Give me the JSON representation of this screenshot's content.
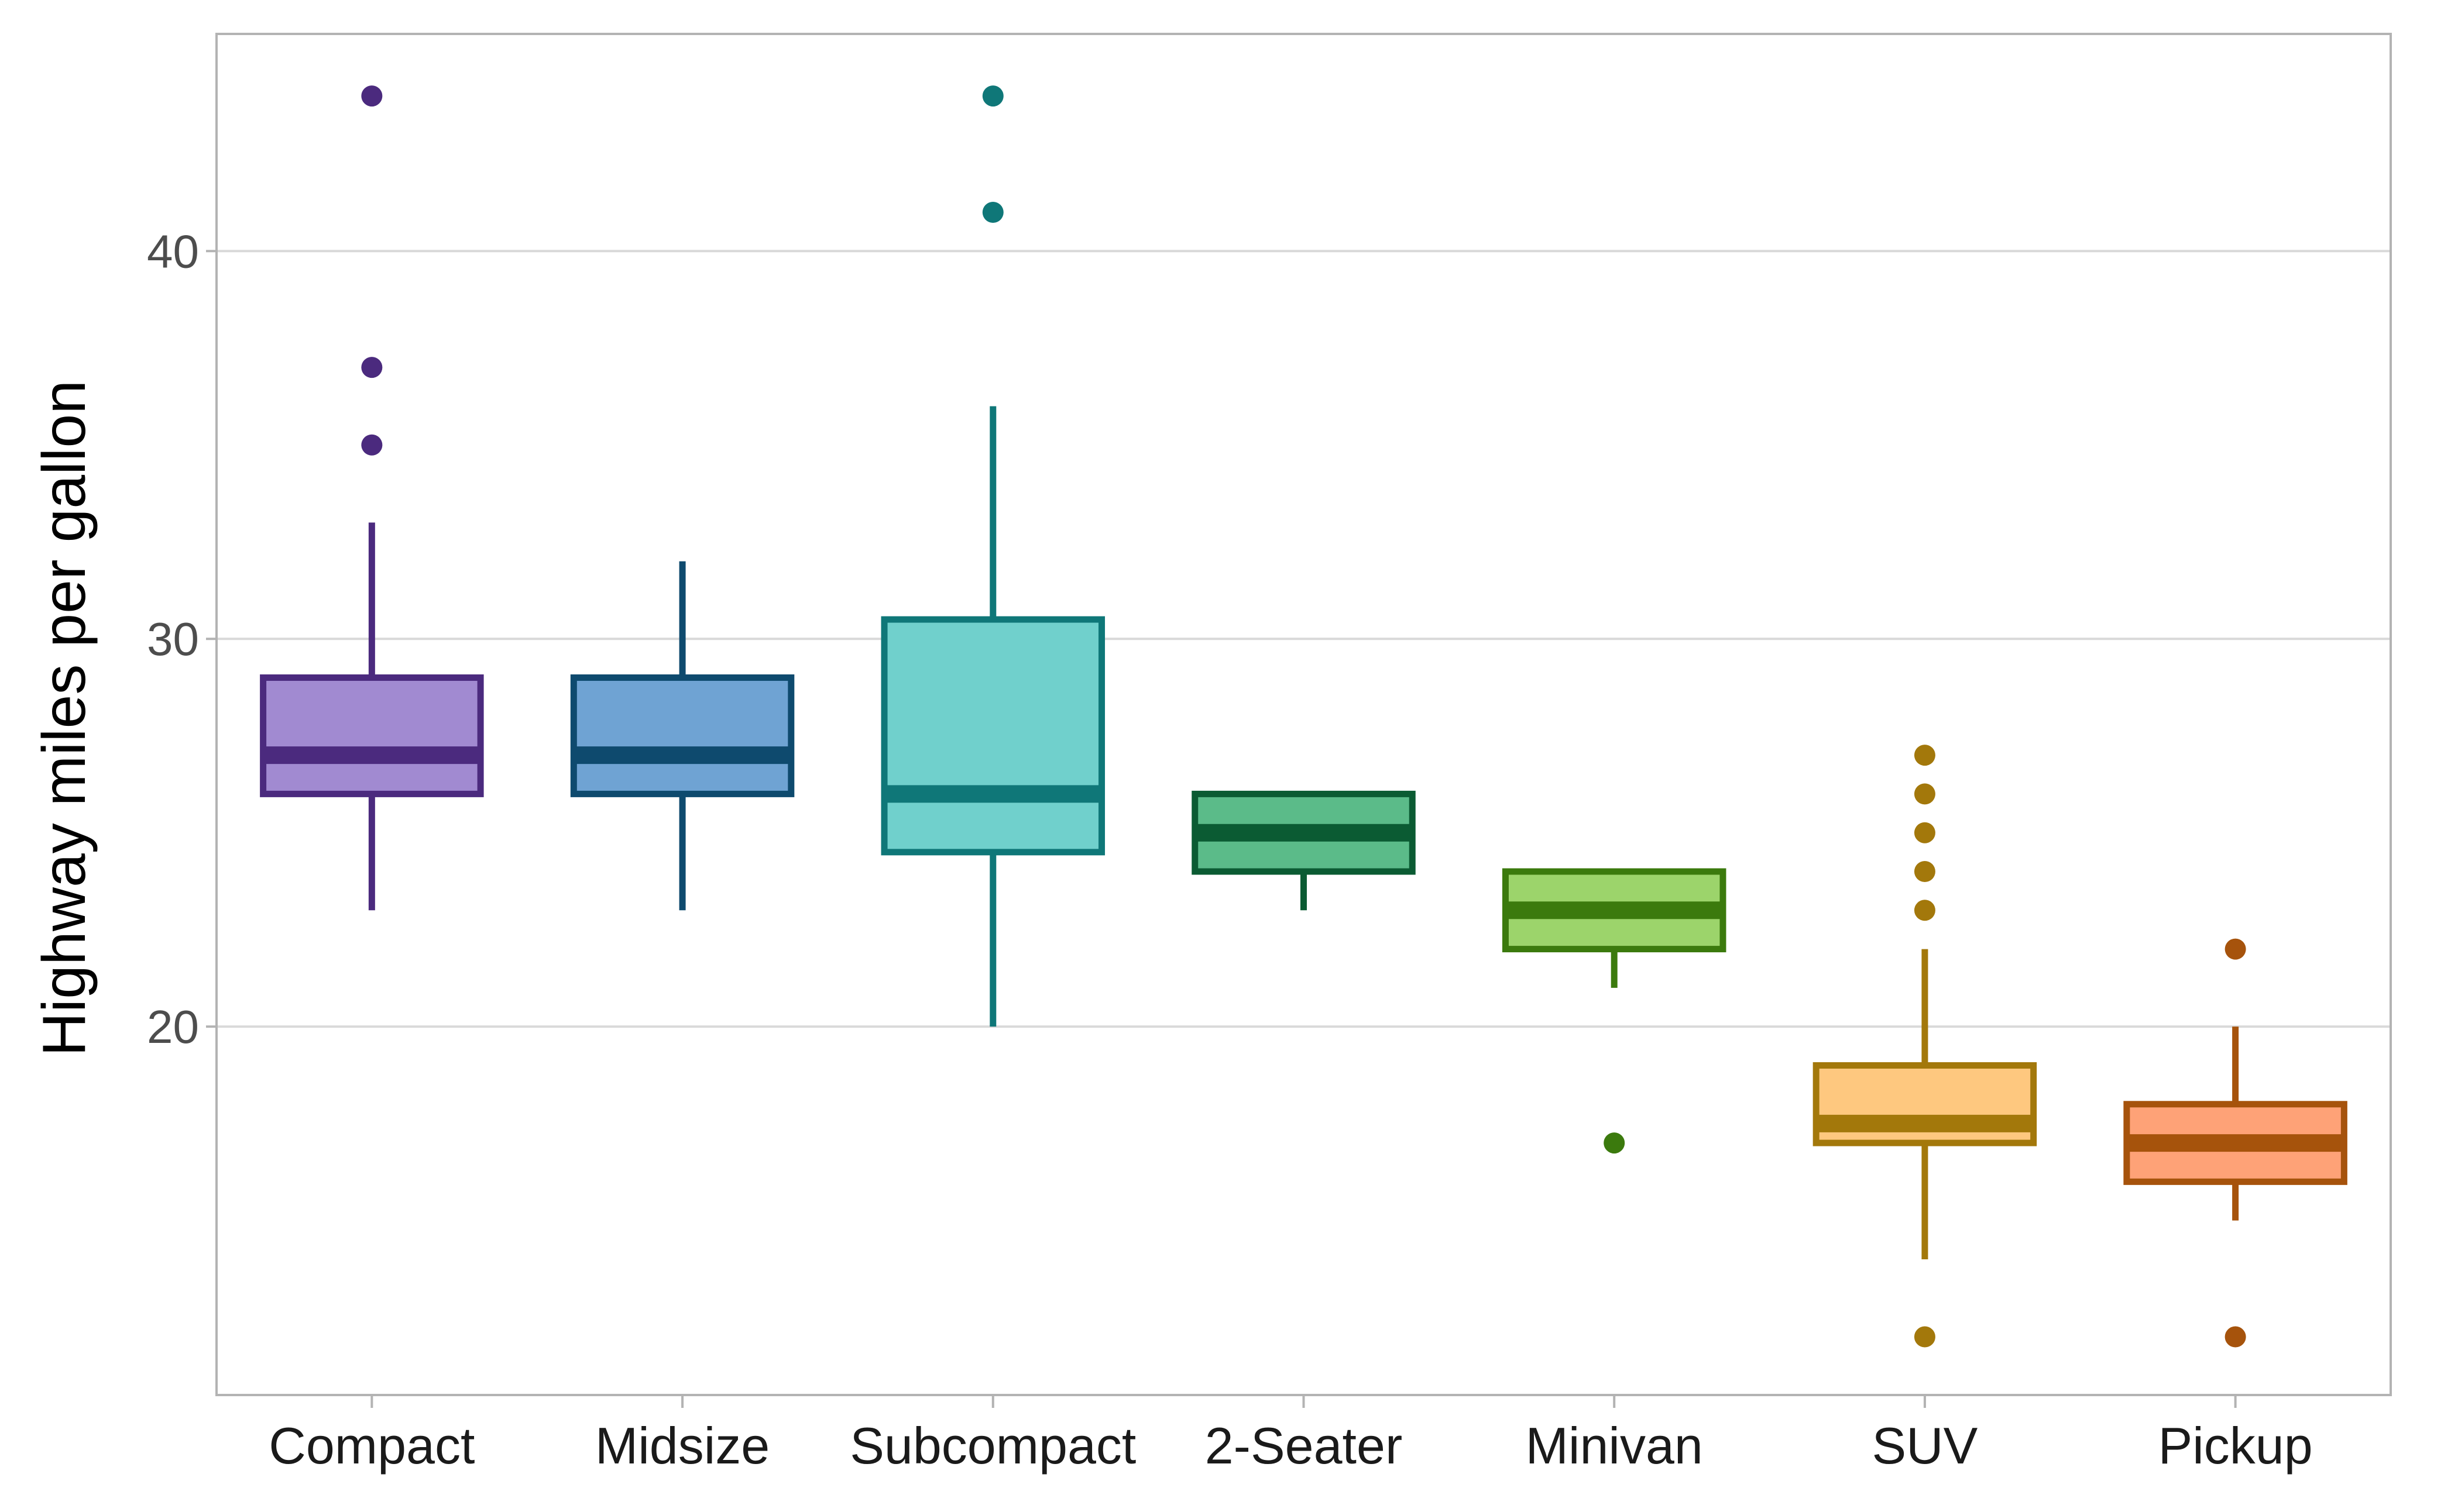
{
  "chart_data": {
    "type": "boxplot",
    "title": "",
    "xlabel": "",
    "ylabel": "Highway miles per gallon",
    "ylim": [
      10.5,
      45.6
    ],
    "yticks": [
      20,
      30,
      40
    ],
    "grid": "horizontal",
    "legend": "none",
    "categories": [
      "Compact",
      "Midsize",
      "Subcompact",
      "2-Seater",
      "Minivan",
      "SUV",
      "Pickup"
    ],
    "series": [
      {
        "category": "Compact",
        "whisker_low": 23,
        "q1": 26,
        "median": 27,
        "q3": 29,
        "whisker_high": 33,
        "outliers": [
          35,
          37,
          44
        ],
        "fill": "#a18ad1",
        "stroke": "#4b2a7e"
      },
      {
        "category": "Midsize",
        "whisker_low": 23,
        "q1": 26,
        "median": 27,
        "q3": 29,
        "whisker_high": 32,
        "outliers": [],
        "fill": "#6fa3d3",
        "stroke": "#0e4a6e"
      },
      {
        "category": "Subcompact",
        "whisker_low": 20,
        "q1": 24.5,
        "median": 26,
        "q3": 30.5,
        "whisker_high": 36,
        "outliers": [
          41,
          44
        ],
        "fill": "#70d0cc",
        "stroke": "#0f7778"
      },
      {
        "category": "2-Seater",
        "whisker_low": 23,
        "q1": 24,
        "median": 25,
        "q3": 26,
        "whisker_high": 26,
        "outliers": [],
        "fill": "#5bbb89",
        "stroke": "#0b5b33"
      },
      {
        "category": "Minivan",
        "whisker_low": 21,
        "q1": 22,
        "median": 23,
        "q3": 24,
        "whisker_high": 24,
        "outliers": [
          17
        ],
        "fill": "#9cd46b",
        "stroke": "#3b7a0d"
      },
      {
        "category": "SUV",
        "whisker_low": 14,
        "q1": 17,
        "median": 17.5,
        "q3": 19,
        "whisker_high": 22,
        "outliers": [
          12,
          23,
          24,
          25,
          26,
          27
        ],
        "fill": "#fec87f",
        "stroke": "#a3780b"
      },
      {
        "category": "Pickup",
        "whisker_low": 15,
        "q1": 16,
        "median": 17,
        "q3": 18,
        "whisker_high": 20,
        "outliers": [
          12,
          22
        ],
        "fill": "#fea277",
        "stroke": "#a6530c"
      }
    ]
  },
  "colors": {
    "panel_border": "#b3b3b3",
    "gridline": "#d9d9d9",
    "tick_label": "#4d4d4d",
    "category_label": "#1a1a1a",
    "axis_title": "#000000"
  }
}
